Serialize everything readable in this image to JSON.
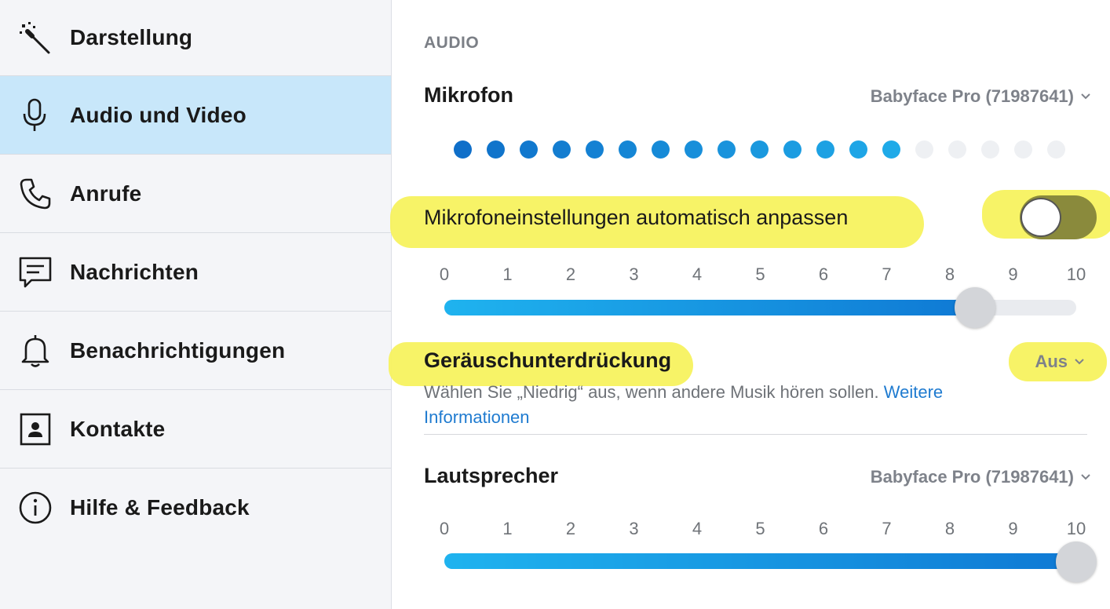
{
  "sidebar": {
    "items": [
      {
        "label": "Darstellung",
        "icon": "magic-wand-icon",
        "active": false
      },
      {
        "label": "Audio und Video",
        "icon": "microphone-icon",
        "active": true
      },
      {
        "label": "Anrufe",
        "icon": "phone-icon",
        "active": false
      },
      {
        "label": "Nachrichten",
        "icon": "message-icon",
        "active": false
      },
      {
        "label": "Benachrichtigungen",
        "icon": "bell-icon",
        "active": false
      },
      {
        "label": "Kontakte",
        "icon": "contact-card-icon",
        "active": false
      },
      {
        "label": "Hilfe & Feedback",
        "icon": "info-icon",
        "active": false
      }
    ]
  },
  "audio": {
    "heading": "AUDIO",
    "microphone": {
      "title": "Mikrofon",
      "device": "Babyface Pro (71987641)",
      "level_dots_total": 19,
      "level_dots_active": 14
    },
    "auto_adjust": {
      "label": "Mikrofoneinstellungen automatisch anpassen",
      "enabled": false
    },
    "mic_volume": {
      "scale": [
        "0",
        "1",
        "2",
        "3",
        "4",
        "5",
        "6",
        "7",
        "8",
        "9",
        "10"
      ],
      "value": 8.4
    },
    "noise_suppression": {
      "title": "Geräuschunterdrückung",
      "value": "Aus",
      "description": "Wählen Sie „Niedrig“ aus, wenn andere Musik hören sollen.",
      "link_line1": "Weitere",
      "link_line2": "Informationen"
    },
    "speaker": {
      "title": "Lautsprecher",
      "device": "Babyface Pro (71987641)",
      "scale": [
        "0",
        "1",
        "2",
        "3",
        "4",
        "5",
        "6",
        "7",
        "8",
        "9",
        "10"
      ],
      "value": 10
    }
  },
  "colors": {
    "accent": "#0f79d4",
    "active_bg": "#c8e7fa",
    "highlighter": "#f6f25a",
    "toggle_off": "#8a8a3c"
  }
}
